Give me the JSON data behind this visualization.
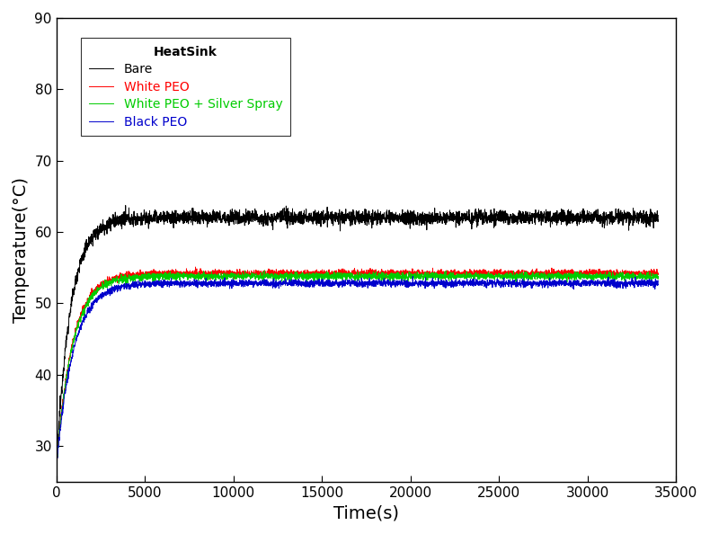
{
  "title": "",
  "xlabel": "Time(s)",
  "ylabel": "Temperature(°C)",
  "xlim": [
    0,
    35000
  ],
  "ylim": [
    25,
    90
  ],
  "yticks": [
    30,
    40,
    50,
    60,
    70,
    80,
    90
  ],
  "xticks": [
    0,
    5000,
    10000,
    15000,
    20000,
    25000,
    30000,
    35000
  ],
  "legend_title": "HeatSink",
  "legend_labels": [
    "Bare",
    "White PEO",
    "White PEO + Silver Spray",
    "Black PEO"
  ],
  "line_colors": [
    "#000000",
    "#ff0000",
    "#00cc00",
    "#0000cc"
  ],
  "series": {
    "bare": {
      "T_start": 27.0,
      "T_plateau": 62.0,
      "tau": 800,
      "noise": 0.5
    },
    "white_peo": {
      "T_start": 27.0,
      "T_plateau": 54.2,
      "tau": 900,
      "noise": 0.25
    },
    "white_peo_silver": {
      "T_start": 27.0,
      "T_plateau": 53.8,
      "tau": 900,
      "noise": 0.25
    },
    "black_peo": {
      "T_start": 27.0,
      "T_plateau": 52.8,
      "tau": 950,
      "noise": 0.25
    }
  },
  "background_color": "#ffffff",
  "linewidth": 0.7,
  "legend_fontsize": 10,
  "axis_label_fontsize": 14,
  "tick_fontsize": 11
}
